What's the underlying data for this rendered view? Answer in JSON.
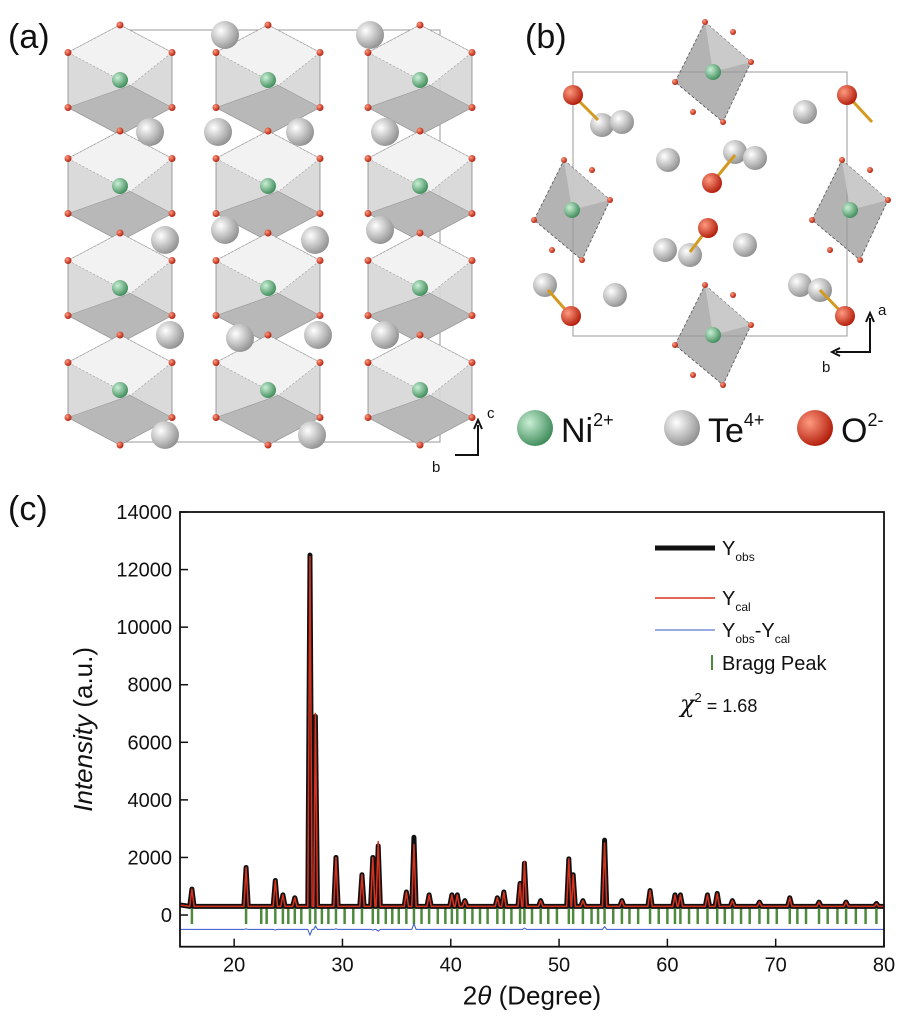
{
  "panels": {
    "a": "(a)",
    "b": "(b)",
    "c": "(c)"
  },
  "crystal": {
    "axes_a": {
      "up": "c",
      "right": "b"
    },
    "axes_b": {
      "up": "a",
      "right": "b"
    },
    "atoms": [
      {
        "symbol": "Ni",
        "charge": "2+",
        "color": "#5aa874"
      },
      {
        "symbol": "Te",
        "charge": "4+",
        "color": "#c8c8c8"
      },
      {
        "symbol": "O",
        "charge": "2-",
        "color": "#d0301c"
      }
    ]
  },
  "chart_data": {
    "type": "line",
    "x_label": [
      {
        "text": "2"
      },
      {
        "text": "θ",
        "italic": true
      },
      {
        "text": " (Degree)"
      }
    ],
    "y_label": [
      {
        "text": "Intensity",
        "italic": true
      },
      {
        "text": " (a.u.)"
      }
    ],
    "xlim": [
      15,
      80
    ],
    "xticks": [
      20,
      30,
      40,
      50,
      60,
      70,
      80
    ],
    "ylim": [
      -1100,
      14000
    ],
    "yticks": [
      0,
      2000,
      4000,
      6000,
      8000,
      10000,
      12000,
      14000
    ],
    "x": [
      15,
      15.9,
      16.1,
      16.3,
      20.9,
      21.1,
      21.3,
      23.6,
      23.8,
      24.0,
      24.3,
      24.5,
      24.7,
      25.4,
      25.6,
      25.8,
      26.8,
      27.0,
      27.2,
      27.35,
      27.5,
      27.7,
      29.2,
      29.4,
      29.6,
      31.6,
      31.8,
      32.0,
      32.6,
      32.8,
      33.0,
      33.1,
      33.3,
      33.5,
      35.7,
      35.9,
      36.1,
      36.4,
      36.6,
      36.8,
      37.8,
      38.0,
      38.2,
      39.9,
      40.1,
      40.3,
      40.4,
      40.6,
      40.8,
      41.1,
      41.3,
      41.5,
      44.1,
      44.3,
      44.5,
      44.7,
      44.9,
      45.1,
      46.2,
      46.4,
      46.55,
      46.65,
      46.8,
      47.0,
      48.1,
      48.3,
      48.5,
      50.7,
      50.9,
      51.1,
      51.15,
      51.3,
      51.5,
      52.0,
      52.2,
      52.4,
      54.0,
      54.2,
      54.4,
      55.6,
      55.8,
      56.0,
      58.2,
      58.4,
      58.6,
      60.5,
      60.7,
      60.9,
      61.0,
      61.2,
      61.4,
      63.5,
      63.7,
      63.9,
      64.4,
      64.6,
      64.8,
      65.8,
      66.0,
      66.2,
      68.3,
      68.5,
      68.7,
      71.1,
      71.3,
      71.5,
      73.8,
      74.0,
      74.2,
      76.3,
      76.5,
      76.7,
      79.1,
      79.3,
      79.5,
      80
    ],
    "series": [
      {
        "name": [
          {
            "text": "Y"
          },
          {
            "text": "obs",
            "sub": true
          }
        ],
        "color": "#111111",
        "width": 5,
        "values": [
          350,
          300,
          900,
          300,
          300,
          1650,
          300,
          300,
          1200,
          300,
          300,
          700,
          300,
          300,
          600,
          300,
          300,
          12500,
          300,
          300,
          6900,
          300,
          300,
          2000,
          300,
          300,
          1400,
          300,
          300,
          2000,
          300,
          300,
          2400,
          300,
          300,
          800,
          300,
          300,
          2700,
          300,
          300,
          700,
          300,
          300,
          700,
          300,
          300,
          700,
          300,
          300,
          500,
          300,
          300,
          600,
          300,
          300,
          800,
          300,
          300,
          1100,
          300,
          300,
          1800,
          300,
          300,
          500,
          300,
          300,
          1950,
          300,
          300,
          1400,
          300,
          300,
          500,
          300,
          300,
          2600,
          300,
          300,
          500,
          300,
          300,
          850,
          300,
          300,
          700,
          300,
          300,
          700,
          300,
          300,
          700,
          300,
          300,
          750,
          300,
          300,
          500,
          300,
          300,
          450,
          300,
          300,
          600,
          300,
          300,
          450,
          300,
          300,
          450,
          300,
          300,
          400,
          300,
          300
        ]
      },
      {
        "name": [
          {
            "text": "Y"
          },
          {
            "text": "cal",
            "sub": true
          }
        ],
        "color": "#d8321e",
        "width": 1.5,
        "values": [
          350,
          300,
          900,
          300,
          300,
          1650,
          300,
          300,
          1200,
          300,
          300,
          700,
          300,
          300,
          600,
          300,
          300,
          12450,
          300,
          300,
          7000,
          300,
          300,
          2000,
          300,
          300,
          1400,
          300,
          300,
          2000,
          300,
          300,
          2550,
          300,
          300,
          800,
          300,
          300,
          2450,
          300,
          300,
          700,
          300,
          300,
          700,
          300,
          300,
          700,
          300,
          300,
          500,
          300,
          300,
          600,
          300,
          300,
          800,
          300,
          300,
          1100,
          300,
          300,
          1850,
          300,
          300,
          500,
          300,
          300,
          1950,
          300,
          300,
          1400,
          300,
          300,
          500,
          300,
          300,
          2500,
          300,
          300,
          500,
          300,
          300,
          850,
          300,
          300,
          700,
          300,
          300,
          700,
          300,
          300,
          700,
          300,
          300,
          750,
          300,
          300,
          500,
          300,
          300,
          450,
          300,
          300,
          600,
          300,
          300,
          450,
          300,
          300,
          450,
          300,
          300,
          400,
          300,
          300
        ]
      },
      {
        "name": [
          {
            "text": "Y"
          },
          {
            "text": "obs",
            "sub": true
          },
          {
            "text": "-Y"
          },
          {
            "text": "cal",
            "sub": true
          }
        ],
        "color": "#3a56c8",
        "width": 1,
        "values": [
          -500,
          -500,
          -500,
          -500,
          -500,
          -480,
          -500,
          -500,
          -520,
          -500,
          -500,
          -500,
          -500,
          -500,
          -500,
          -500,
          -500,
          -700,
          -500,
          -500,
          -380,
          -500,
          -500,
          -480,
          -500,
          -500,
          -500,
          -500,
          -500,
          -520,
          -500,
          -500,
          -560,
          -500,
          -500,
          -500,
          -500,
          -500,
          -300,
          -500,
          -500,
          -500,
          -500,
          -500,
          -500,
          -500,
          -500,
          -500,
          -500,
          -500,
          -500,
          -500,
          -500,
          -500,
          -500,
          -500,
          -500,
          -500,
          -500,
          -500,
          -500,
          -500,
          -450,
          -500,
          -500,
          -500,
          -500,
          -500,
          -500,
          -500,
          -500,
          -500,
          -500,
          -500,
          -500,
          -500,
          -500,
          -400,
          -500,
          -500,
          -500,
          -500,
          -500,
          -500,
          -500,
          -500,
          -500,
          -500,
          -500,
          -500,
          -500,
          -500,
          -500,
          -500,
          -500,
          -500,
          -500,
          -500,
          -500,
          -500,
          -500,
          -500,
          -500,
          -500,
          -500,
          -500,
          -500,
          -500,
          -500,
          -500,
          -500,
          -500,
          -500,
          -500,
          -500,
          -500
        ]
      }
    ],
    "bragg": {
      "name": "Bragg Peak",
      "color": "#4f8a3c",
      "positions": [
        16.1,
        21.1,
        22.5,
        23.0,
        23.8,
        24.5,
        25.0,
        25.6,
        26.2,
        27.0,
        27.5,
        28.1,
        28.7,
        29.4,
        30.2,
        31.0,
        31.8,
        32.8,
        33.3,
        34.0,
        34.6,
        35.2,
        35.9,
        36.6,
        37.3,
        38.0,
        38.8,
        39.5,
        40.1,
        40.6,
        41.3,
        42.0,
        42.7,
        43.4,
        44.3,
        44.9,
        45.6,
        46.4,
        46.8,
        47.5,
        48.3,
        49.0,
        49.8,
        50.9,
        51.3,
        52.2,
        53.0,
        53.6,
        54.2,
        55.0,
        55.8,
        56.5,
        57.3,
        58.4,
        59.2,
        60.0,
        60.7,
        61.2,
        62.0,
        62.8,
        63.7,
        64.6,
        65.3,
        66.0,
        66.8,
        67.6,
        68.5,
        69.3,
        70.1,
        71.3,
        72.0,
        72.8,
        74.0,
        74.8,
        75.7,
        76.5,
        77.4,
        78.3,
        79.3
      ]
    },
    "annotation": {
      "symbol": "χ",
      "power": "2",
      "text": " = 1.68"
    }
  }
}
